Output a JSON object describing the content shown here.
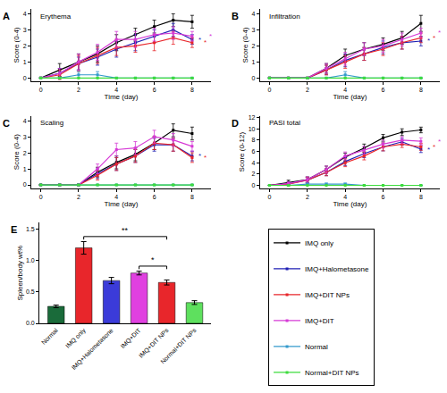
{
  "chart_data": [
    {
      "type": "line",
      "panel": "A",
      "title": "Erythema",
      "x_label": "Time (day)",
      "y_label": "Score (0-4)",
      "x": [
        0,
        1,
        2,
        3,
        4,
        5,
        6,
        7,
        8
      ],
      "xlim": [
        -0.5,
        9
      ],
      "xticks": [
        0,
        2,
        4,
        6,
        8
      ],
      "ylim": [
        -0.2,
        4.3
      ],
      "yticks": [
        0,
        1,
        2,
        3,
        4
      ],
      "marker": "square",
      "series": [
        {
          "name": "IMQ only",
          "color": "#000000",
          "values": [
            0,
            0.5,
            1.0,
            1.5,
            2.2,
            2.7,
            3.2,
            3.6,
            3.5
          ],
          "errors": [
            0,
            0.4,
            0.5,
            0.5,
            0.5,
            0.4,
            0.4,
            0.4,
            0.4
          ]
        },
        {
          "name": "IMQ+Halometasone",
          "color": "#1f1fb4",
          "values": [
            0,
            0.3,
            0.9,
            1.3,
            1.8,
            2.2,
            2.6,
            3.0,
            2.4
          ],
          "errors": [
            0,
            0.3,
            0.4,
            0.5,
            0.5,
            0.5,
            0.4,
            0.4,
            0.3
          ],
          "significance": "*"
        },
        {
          "name": "IMQ+DIT NPs",
          "color": "#e8262b",
          "values": [
            0,
            0.2,
            0.9,
            1.4,
            1.9,
            2.0,
            2.2,
            2.5,
            2.2
          ],
          "errors": [
            0,
            0.3,
            0.5,
            0.5,
            0.5,
            0.4,
            0.5,
            0.4,
            0.3
          ],
          "significance": "*"
        },
        {
          "name": "IMQ+DIT",
          "color": "#d63ad6",
          "values": [
            0,
            0.3,
            1.0,
            1.6,
            2.4,
            2.4,
            2.7,
            2.8,
            2.6
          ],
          "errors": [
            0,
            0.3,
            0.5,
            0.5,
            0.5,
            0.5,
            0.4,
            0.4,
            0.3
          ],
          "significance": "*"
        },
        {
          "name": "Normal",
          "color": "#3399cc",
          "values": [
            0,
            0,
            0.2,
            0.2,
            0,
            0,
            0,
            0,
            0
          ],
          "errors": [
            0,
            0,
            0.2,
            0.2,
            0,
            0,
            0,
            0,
            0
          ]
        },
        {
          "name": "Normal+DIT NPs",
          "color": "#3ddc3d",
          "values": [
            0,
            0,
            0,
            0,
            0,
            0,
            0,
            0,
            0
          ],
          "errors": [
            0,
            0,
            0,
            0,
            0,
            0,
            0,
            0,
            0
          ]
        }
      ]
    },
    {
      "type": "line",
      "panel": "B",
      "title": "Infiltration",
      "x_label": "Time (day)",
      "y_label": "Score (0-4)",
      "x": [
        0,
        1,
        2,
        3,
        4,
        5,
        6,
        7,
        8
      ],
      "xlim": [
        -0.5,
        9
      ],
      "xticks": [
        0,
        2,
        4,
        6,
        8
      ],
      "ylim": [
        -0.2,
        4.3
      ],
      "yticks": [
        0,
        1,
        2,
        3,
        4
      ],
      "marker": "square",
      "series": [
        {
          "name": "IMQ only",
          "color": "#000000",
          "values": [
            0,
            0,
            0,
            0.6,
            1.4,
            1.8,
            2.1,
            2.5,
            3.4
          ],
          "errors": [
            0,
            0,
            0,
            0.3,
            0.4,
            0.4,
            0.4,
            0.4,
            0.5
          ]
        },
        {
          "name": "IMQ+Halometasone",
          "color": "#1f1fb4",
          "values": [
            0,
            0,
            0,
            0.5,
            1.1,
            1.5,
            1.9,
            2.2,
            2.3
          ],
          "errors": [
            0,
            0,
            0,
            0.3,
            0.4,
            0.4,
            0.4,
            0.4,
            0.3
          ],
          "significance": "*"
        },
        {
          "name": "IMQ+DIT NPs",
          "color": "#e8262b",
          "values": [
            0,
            0,
            0,
            0.5,
            1.0,
            1.5,
            1.8,
            2.2,
            2.5
          ],
          "errors": [
            0,
            0,
            0,
            0.3,
            0.4,
            0.4,
            0.4,
            0.4,
            0.3
          ],
          "significance": "*"
        },
        {
          "name": "IMQ+DIT",
          "color": "#d63ad6",
          "values": [
            0,
            0,
            0,
            0.6,
            1.2,
            1.8,
            2.0,
            2.4,
            2.8
          ],
          "errors": [
            0,
            0,
            0,
            0.3,
            0.4,
            0.4,
            0.4,
            0.4,
            0.3
          ],
          "significance": "*"
        },
        {
          "name": "Normal",
          "color": "#3399cc",
          "values": [
            0,
            0,
            0,
            0,
            0.2,
            0,
            0,
            0,
            0
          ],
          "errors": [
            0,
            0,
            0,
            0,
            0.2,
            0,
            0,
            0,
            0
          ]
        },
        {
          "name": "Normal+DIT NPs",
          "color": "#3ddc3d",
          "values": [
            0,
            0,
            0,
            0,
            0,
            0,
            0,
            0,
            0
          ],
          "errors": [
            0,
            0,
            0,
            0,
            0,
            0,
            0,
            0,
            0
          ]
        }
      ]
    },
    {
      "type": "line",
      "panel": "C",
      "title": "Scaling",
      "x_label": "Time (day)",
      "y_label": "Score (0-4)",
      "x": [
        0,
        1,
        2,
        3,
        4,
        5,
        6,
        7,
        8
      ],
      "xlim": [
        -0.5,
        9
      ],
      "xticks": [
        0,
        2,
        4,
        6,
        8
      ],
      "ylim": [
        -0.2,
        4.3
      ],
      "yticks": [
        0,
        1,
        2,
        3,
        4
      ],
      "marker": "square",
      "series": [
        {
          "name": "IMQ only",
          "color": "#000000",
          "values": [
            0,
            0,
            0,
            0.8,
            1.4,
            1.9,
            2.6,
            3.4,
            3.2
          ],
          "errors": [
            0,
            0,
            0,
            0.3,
            0.4,
            0.4,
            0.4,
            0.4,
            0.4
          ]
        },
        {
          "name": "IMQ+Halometasone",
          "color": "#1f1fb4",
          "values": [
            0,
            0,
            0,
            0.7,
            1.3,
            1.8,
            2.5,
            2.5,
            1.8
          ],
          "errors": [
            0,
            0,
            0,
            0.3,
            0.4,
            0.4,
            0.4,
            0.4,
            0.3
          ],
          "significance": "*"
        },
        {
          "name": "IMQ+DIT NPs",
          "color": "#e8262b",
          "values": [
            0,
            0,
            0,
            0.6,
            1.3,
            1.8,
            2.6,
            2.5,
            1.7
          ],
          "errors": [
            0,
            0,
            0,
            0.3,
            0.4,
            0.4,
            0.4,
            0.4,
            0.3
          ],
          "significance": "*"
        },
        {
          "name": "IMQ+DIT",
          "color": "#d63ad6",
          "values": [
            0,
            0,
            0,
            1.0,
            2.2,
            2.3,
            3.0,
            2.8,
            2.4
          ],
          "errors": [
            0,
            0,
            0,
            0.3,
            0.4,
            0.4,
            0.4,
            0.4,
            0.3
          ]
        },
        {
          "name": "Normal",
          "color": "#3399cc",
          "values": [
            0,
            0,
            0,
            0,
            0,
            0,
            0,
            0,
            0
          ],
          "errors": [
            0,
            0,
            0,
            0,
            0,
            0,
            0,
            0,
            0
          ]
        },
        {
          "name": "Normal+DIT NPs",
          "color": "#3ddc3d",
          "values": [
            0,
            0,
            0,
            0,
            0,
            0,
            0,
            0,
            0
          ],
          "errors": [
            0,
            0,
            0,
            0,
            0,
            0,
            0,
            0,
            0
          ]
        }
      ]
    },
    {
      "type": "line",
      "panel": "D",
      "title": "PASI total",
      "x_label": "Time (day)",
      "y_label": "Score (0-12)",
      "x": [
        0,
        1,
        2,
        3,
        4,
        5,
        6,
        7,
        8
      ],
      "xlim": [
        -0.5,
        9
      ],
      "xticks": [
        0,
        2,
        4,
        6,
        8
      ],
      "ylim": [
        -0.5,
        12.3
      ],
      "yticks": [
        0,
        2,
        4,
        6,
        8,
        10,
        12
      ],
      "marker": "square",
      "series": [
        {
          "name": "IMQ only",
          "color": "#000000",
          "values": [
            0,
            0.5,
            1.0,
            2.8,
            5.0,
            6.6,
            8.4,
            9.4,
            9.8
          ],
          "errors": [
            0,
            0.4,
            0.5,
            0.6,
            0.7,
            0.7,
            0.6,
            0.6,
            0.5
          ]
        },
        {
          "name": "IMQ+Halometasone",
          "color": "#1f1fb4",
          "values": [
            0,
            0.3,
            0.9,
            2.3,
            4.2,
            5.6,
            6.8,
            7.7,
            6.4
          ],
          "errors": [
            0,
            0.3,
            0.5,
            0.6,
            0.7,
            0.7,
            0.7,
            0.6,
            0.6
          ],
          "significance": "*"
        },
        {
          "name": "IMQ+DIT NPs",
          "color": "#e8262b",
          "values": [
            0,
            0.2,
            0.9,
            2.3,
            4.0,
            5.2,
            6.8,
            7.3,
            6.8
          ],
          "errors": [
            0,
            0.3,
            0.5,
            0.6,
            0.7,
            0.7,
            0.7,
            0.6,
            0.6
          ],
          "significance": "*"
        },
        {
          "name": "IMQ+DIT",
          "color": "#d63ad6",
          "values": [
            0,
            0.3,
            1.0,
            2.8,
            5.2,
            6.2,
            7.3,
            8.0,
            7.8
          ],
          "errors": [
            0,
            0.3,
            0.5,
            0.6,
            0.7,
            0.7,
            0.7,
            0.6,
            0.6
          ],
          "significance": "*"
        },
        {
          "name": "Normal",
          "color": "#3399cc",
          "values": [
            0,
            0,
            0.2,
            0.2,
            0.2,
            0,
            0,
            0,
            0
          ],
          "errors": [
            0,
            0,
            0.2,
            0.2,
            0.2,
            0,
            0,
            0,
            0
          ]
        },
        {
          "name": "Normal+DIT NPs",
          "color": "#3ddc3d",
          "values": [
            0,
            0,
            0,
            0,
            0,
            0,
            0,
            0,
            0
          ],
          "errors": [
            0,
            0,
            0,
            0,
            0,
            0,
            0,
            0,
            0
          ]
        }
      ]
    },
    {
      "type": "bar",
      "panel": "E",
      "y_label": "Spleen/body wt%",
      "categories": [
        "Normal",
        "IMQ only",
        "IMQ+Halometasone",
        "IMQ+DIT",
        "IMQ+DIT NPs",
        "Normal+DIT NPs"
      ],
      "values": [
        0.27,
        1.2,
        0.68,
        0.8,
        0.65,
        0.33
      ],
      "errors": [
        0.02,
        0.1,
        0.05,
        0.03,
        0.04,
        0.03
      ],
      "colors": [
        "#1a6b3a",
        "#e8262b",
        "#3b3bd9",
        "#e040e0",
        "#e8262b",
        "#5ee05e"
      ],
      "ylim": [
        0,
        1.6
      ],
      "yticks": [
        {
          "value": 0,
          "label": "0.0"
        },
        {
          "value": 0.5,
          "label": "0.5"
        },
        {
          "value": 1,
          "label": "1.0"
        },
        {
          "value": 1.5,
          "label": "1.5"
        }
      ],
      "comparisons": [
        {
          "from": "IMQ only",
          "to": "IMQ+DIT NPs",
          "label": "**"
        },
        {
          "from": "IMQ+DIT",
          "to": "IMQ+DIT NPs",
          "label": "*"
        }
      ]
    }
  ]
}
